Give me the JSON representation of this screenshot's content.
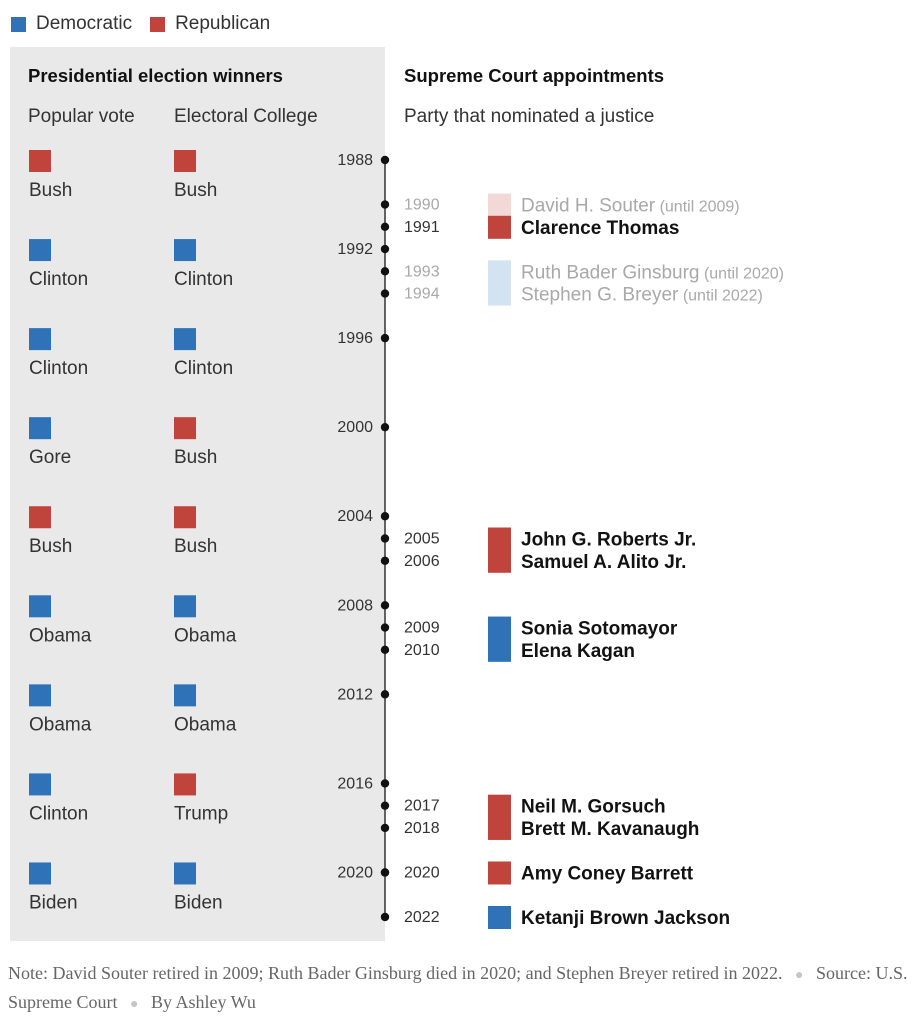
{
  "legend": {
    "democratic_label": "Democratic",
    "republican_label": "Republican"
  },
  "colors": {
    "democratic": "#2f72b8",
    "republican": "#c0433c",
    "democratic_faded": "#d4e3f2",
    "republican_faded": "#f2d8d6",
    "panel": "#e9e9e9"
  },
  "left": {
    "title": "Presidential election winners",
    "col1": "Popular vote",
    "col2": "Electoral College"
  },
  "right": {
    "title": "Supreme Court appointments",
    "subtitle": "Party that nominated a justice"
  },
  "chart_data": {
    "type": "timeline",
    "axis": {
      "min": 1988,
      "max": 2022
    },
    "elections": [
      {
        "year": 1988,
        "popular": {
          "name": "Bush",
          "party": "republican"
        },
        "electoral": {
          "name": "Bush",
          "party": "republican"
        }
      },
      {
        "year": 1992,
        "popular": {
          "name": "Clinton",
          "party": "democratic"
        },
        "electoral": {
          "name": "Clinton",
          "party": "democratic"
        }
      },
      {
        "year": 1996,
        "popular": {
          "name": "Clinton",
          "party": "democratic"
        },
        "electoral": {
          "name": "Clinton",
          "party": "democratic"
        }
      },
      {
        "year": 2000,
        "popular": {
          "name": "Gore",
          "party": "democratic"
        },
        "electoral": {
          "name": "Bush",
          "party": "republican"
        }
      },
      {
        "year": 2004,
        "popular": {
          "name": "Bush",
          "party": "republican"
        },
        "electoral": {
          "name": "Bush",
          "party": "republican"
        }
      },
      {
        "year": 2008,
        "popular": {
          "name": "Obama",
          "party": "democratic"
        },
        "electoral": {
          "name": "Obama",
          "party": "democratic"
        }
      },
      {
        "year": 2012,
        "popular": {
          "name": "Obama",
          "party": "democratic"
        },
        "electoral": {
          "name": "Obama",
          "party": "democratic"
        }
      },
      {
        "year": 2016,
        "popular": {
          "name": "Clinton",
          "party": "democratic"
        },
        "electoral": {
          "name": "Trump",
          "party": "republican"
        }
      },
      {
        "year": 2020,
        "popular": {
          "name": "Biden",
          "party": "democratic"
        },
        "electoral": {
          "name": "Biden",
          "party": "democratic"
        }
      }
    ],
    "appointments": [
      {
        "year": 1990,
        "name": "David H. Souter",
        "until": "(until 2009)",
        "party": "republican",
        "faded": true
      },
      {
        "year": 1991,
        "name": "Clarence Thomas",
        "until": "",
        "party": "republican",
        "faded": false
      },
      {
        "year": 1993,
        "name": "Ruth Bader Ginsburg",
        "until": "(until 2020)",
        "party": "democratic",
        "faded": true
      },
      {
        "year": 1994,
        "name": "Stephen G. Breyer",
        "until": "(until 2022)",
        "party": "democratic",
        "faded": true
      },
      {
        "year": 2005,
        "name": "John G. Roberts Jr.",
        "until": "",
        "party": "republican",
        "faded": false
      },
      {
        "year": 2006,
        "name": "Samuel A. Alito Jr.",
        "until": "",
        "party": "republican",
        "faded": false
      },
      {
        "year": 2009,
        "name": "Sonia Sotomayor",
        "until": "",
        "party": "democratic",
        "faded": false
      },
      {
        "year": 2010,
        "name": "Elena Kagan",
        "until": "",
        "party": "democratic",
        "faded": false
      },
      {
        "year": 2017,
        "name": "Neil M. Gorsuch",
        "until": "",
        "party": "republican",
        "faded": false
      },
      {
        "year": 2018,
        "name": "Brett M. Kavanaugh",
        "until": "",
        "party": "republican",
        "faded": false
      },
      {
        "year": 2020,
        "name": "Amy Coney Barrett",
        "until": "",
        "party": "republican",
        "faded": false
      },
      {
        "year": 2022,
        "name": "Ketanji Brown Jackson",
        "until": "",
        "party": "democratic",
        "faded": false
      }
    ]
  },
  "footer": {
    "note": "Note: David Souter retired in 2009; Ruth Bader Ginsburg died in 2020; and Stephen Breyer retired in 2022.",
    "source": "Source: U.S. Supreme Court",
    "byline": "By Ashley Wu"
  }
}
